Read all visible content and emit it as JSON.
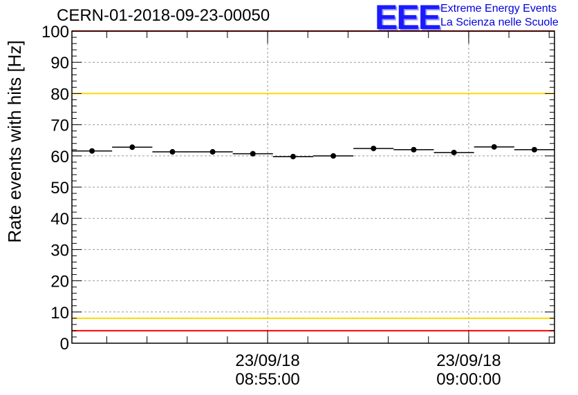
{
  "title": "CERN-01-2018-09-23-00050",
  "logo": {
    "mark": "EEE",
    "line1": "Extreme Energy Events",
    "line2": "La Scienza nelle Scuole"
  },
  "colors": {
    "threshold_red": "#ff0000",
    "threshold_yellow": "#ffd700",
    "logo_blue": "#1a1aff",
    "marker": "#000000",
    "grid": "#999999"
  },
  "chart_data": {
    "type": "scatter",
    "title": "CERN-01-2018-09-23-00050",
    "xlabel": "",
    "ylabel": "Rate events with hits [Hz]",
    "ylim": [
      0,
      100
    ],
    "yticks": [
      "0",
      "10",
      "20",
      "30",
      "40",
      "50",
      "60",
      "70",
      "80",
      "90",
      "100"
    ],
    "xlim": [
      "08:50:08",
      "09:02:08"
    ],
    "xtick_labels": [
      {
        "time": "08:55:00",
        "date": "23/09/18",
        "label_time": "08:55:00"
      },
      {
        "time": "09:00:00",
        "date": "23/09/18",
        "label_time": "09:00:00"
      }
    ],
    "grid": true,
    "bin_width_seconds": 60,
    "x": [
      "08:50:38",
      "08:51:38",
      "08:52:38",
      "08:53:38",
      "08:54:38",
      "08:55:38",
      "08:56:38",
      "08:57:38",
      "08:58:38",
      "08:59:38",
      "09:00:38",
      "09:01:38"
    ],
    "values": [
      61.6,
      62.8,
      61.3,
      61.3,
      60.7,
      59.8,
      60.0,
      62.4,
      62.0,
      61.1,
      62.9,
      62.0
    ],
    "reference_lines": [
      {
        "y": 100,
        "color": "#ff0000"
      },
      {
        "y": 80,
        "color": "#ffd700"
      },
      {
        "y": 8,
        "color": "#ffd700"
      },
      {
        "y": 4,
        "color": "#ff0000"
      }
    ]
  }
}
